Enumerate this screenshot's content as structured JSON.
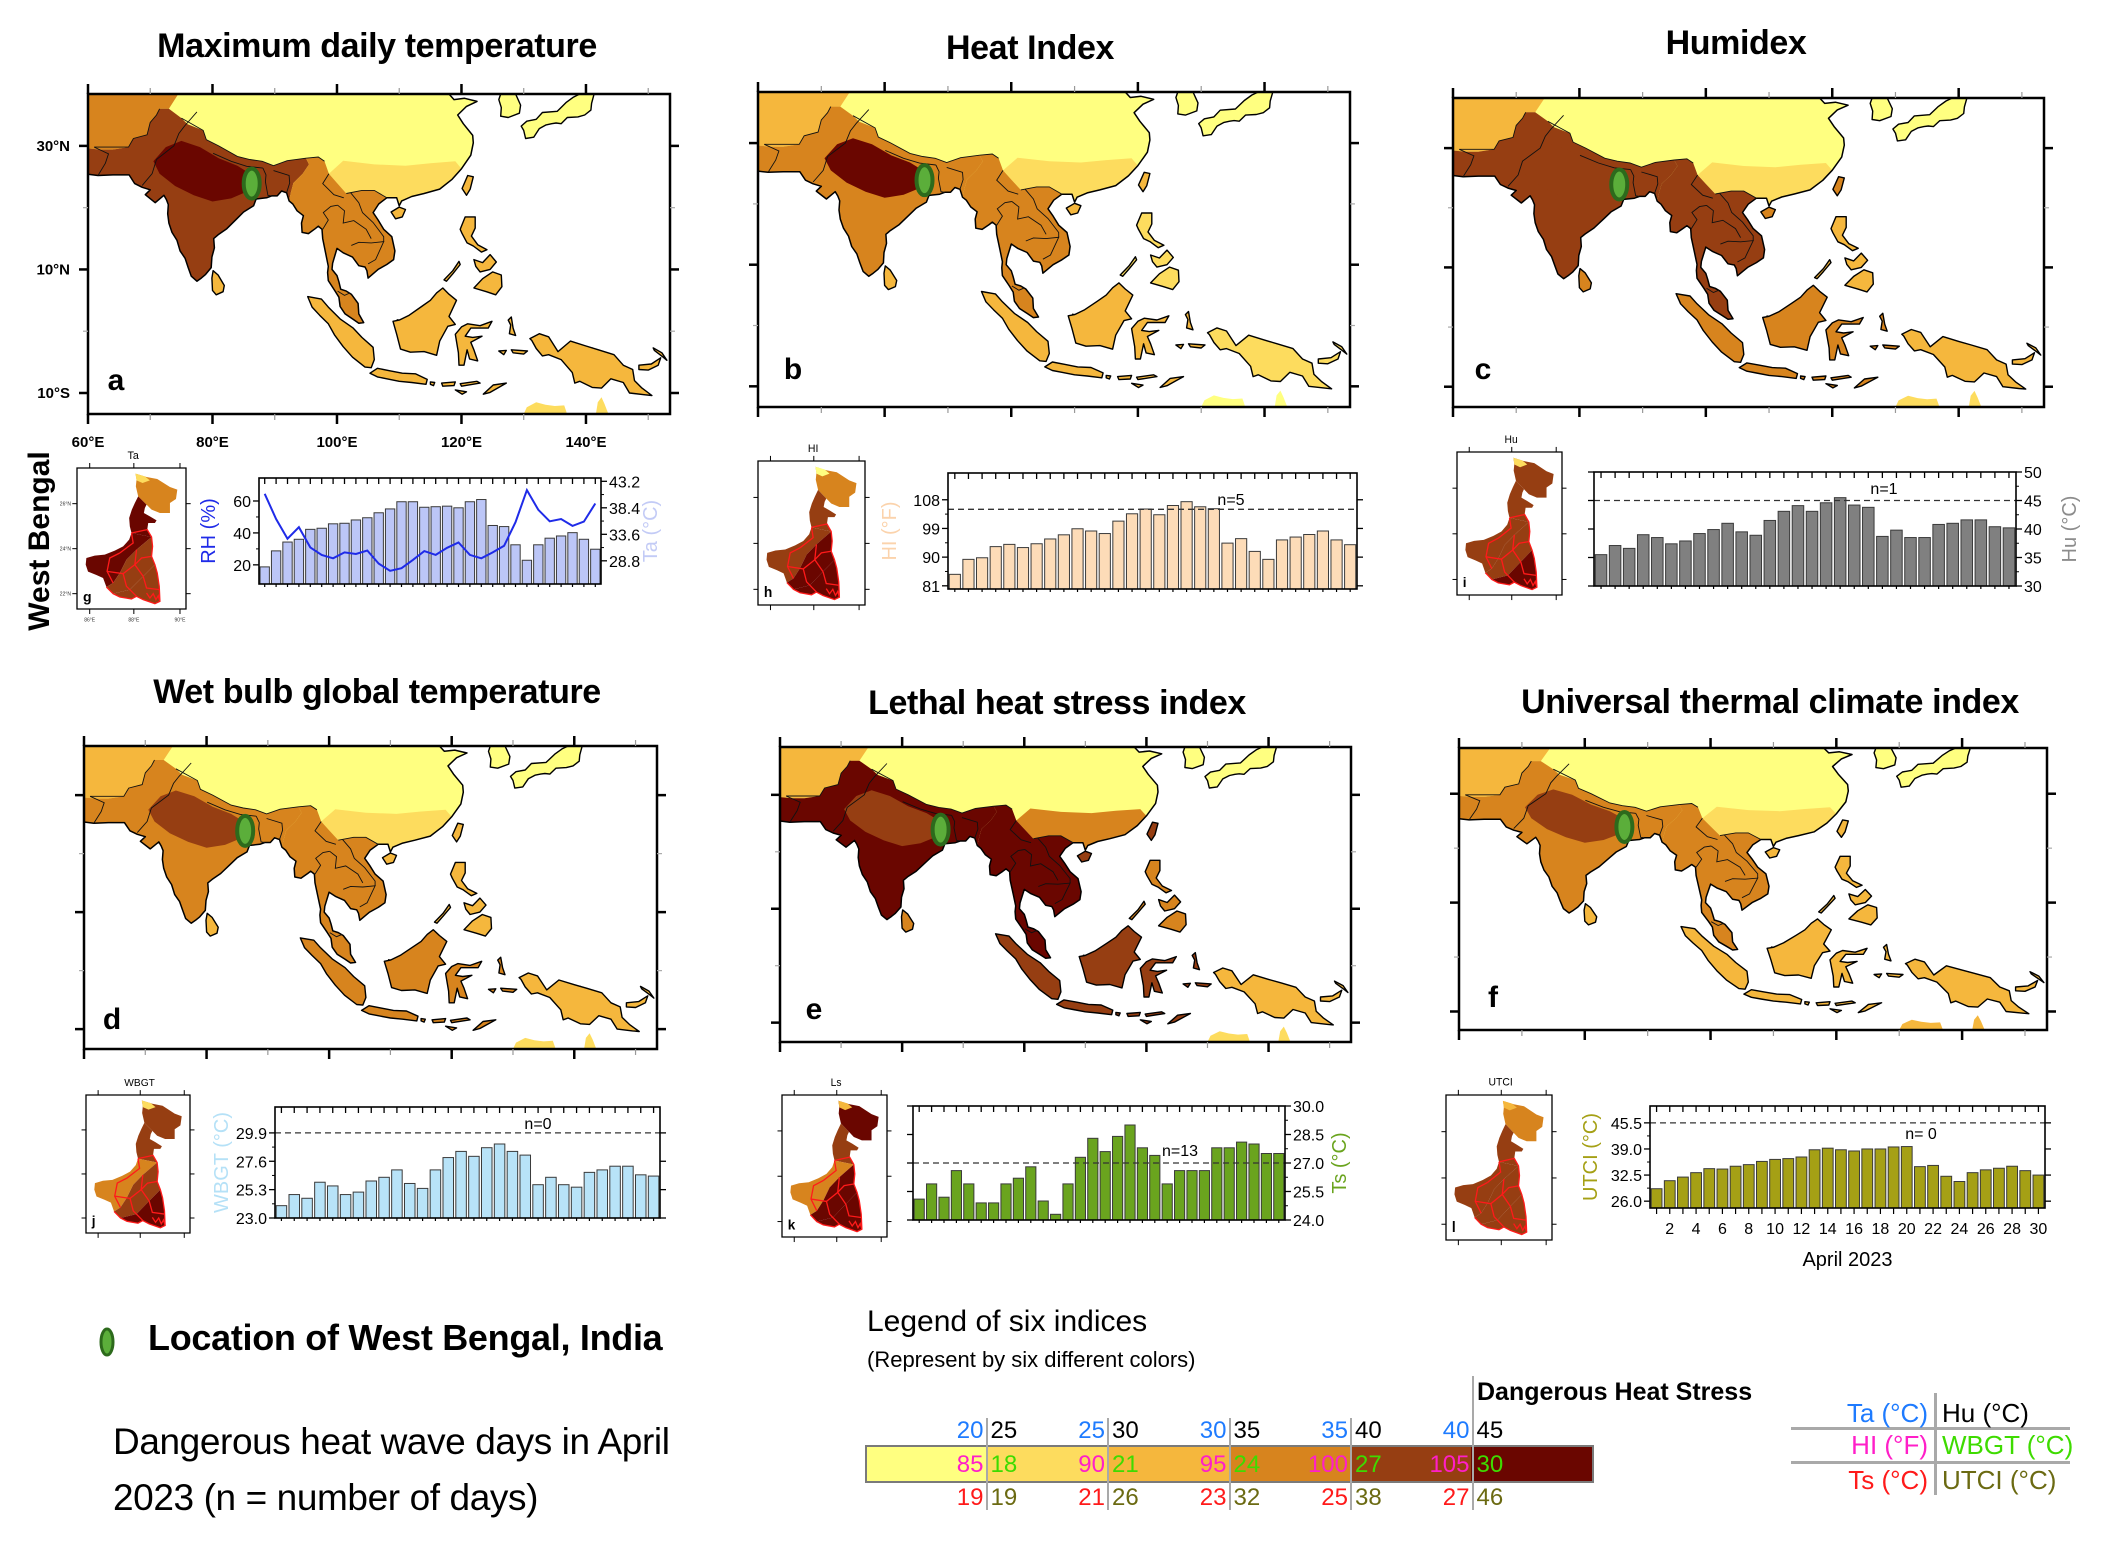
{
  "side_label": "West Bengal",
  "panels": [
    {
      "key": "ta",
      "letter": "a",
      "title": "Maximum daily temperature",
      "mini_title": "Ta",
      "mini_letter": "g",
      "map_levels": {
        "north": 1,
        "west": 4,
        "south_asia": 5,
        "india_core": 6,
        "south_china": 2,
        "indochina": 4,
        "maritime": 3,
        "new_guinea": 3,
        "japan_korea": 1,
        "philippines": 3,
        "taiwan_hainan": 3,
        "sri_lanka": 3,
        "australia": 2
      },
      "mini_levels": {
        "north_tip": 2,
        "north": 4,
        "neck": 6,
        "west": 6,
        "south": 5,
        "southeast": 5
      }
    },
    {
      "key": "hi",
      "letter": "b",
      "title": "Heat Index",
      "mini_title": "HI",
      "mini_letter": "h",
      "map_levels": {
        "north": 1,
        "west": 3,
        "south_asia": 4,
        "india_core": 6,
        "south_china": 2,
        "indochina": 4,
        "maritime": 3,
        "new_guinea": 2,
        "japan_korea": 1,
        "philippines": 2,
        "taiwan_hainan": 3,
        "sri_lanka": 3,
        "australia": 1
      },
      "mini_levels": {
        "north_tip": 1,
        "north": 4,
        "neck": 5,
        "west": 5,
        "south": 6,
        "southeast": 6
      }
    },
    {
      "key": "hu",
      "letter": "c",
      "title": "Humidex",
      "mini_title": "Hu",
      "mini_letter": "i",
      "map_levels": {
        "north": 1,
        "west": 3,
        "south_asia": 5,
        "india_core": 5,
        "south_china": 2,
        "indochina": 5,
        "maritime": 4,
        "new_guinea": 3,
        "japan_korea": 1,
        "philippines": 3,
        "taiwan_hainan": 4,
        "sri_lanka": 4,
        "australia": 2
      },
      "mini_levels": {
        "north_tip": 2,
        "north": 5,
        "neck": 5,
        "west": 5,
        "south": 5,
        "southeast": 6
      }
    },
    {
      "key": "wbgt",
      "letter": "d",
      "title": "Wet bulb global temperature",
      "mini_title": "WBGT",
      "mini_letter": "j",
      "map_levels": {
        "north": 1,
        "west": 3,
        "south_asia": 4,
        "india_core": 5,
        "south_china": 2,
        "indochina": 4,
        "maritime": 4,
        "new_guinea": 3,
        "japan_korea": 1,
        "philippines": 3,
        "taiwan_hainan": 3,
        "sri_lanka": 3,
        "australia": 2
      },
      "mini_levels": {
        "north_tip": 2,
        "north": 5,
        "neck": 5,
        "west": 4,
        "south": 5,
        "southeast": 6
      }
    },
    {
      "key": "ls",
      "letter": "e",
      "title": "Lethal heat stress index",
      "mini_title": "Ls",
      "mini_letter": "k",
      "map_levels": {
        "north": 1,
        "west": 3,
        "south_asia": 6,
        "india_core": 5,
        "south_china": 4,
        "indochina": 6,
        "maritime": 5,
        "new_guinea": 3,
        "japan_korea": 1,
        "philippines": 4,
        "taiwan_hainan": 5,
        "sri_lanka": 4,
        "australia": 2
      },
      "mini_levels": {
        "north_tip": 3,
        "north": 6,
        "neck": 5,
        "west": 4,
        "south": 6,
        "southeast": 6
      }
    },
    {
      "key": "utci",
      "letter": "f",
      "title": "Universal thermal climate index",
      "mini_title": "UTCI",
      "mini_letter": "l",
      "map_levels": {
        "north": 1,
        "west": 3,
        "south_asia": 4,
        "india_core": 5,
        "south_china": 2,
        "indochina": 4,
        "maritime": 3,
        "new_guinea": 3,
        "japan_korea": 1,
        "philippines": 3,
        "taiwan_hainan": 3,
        "sri_lanka": 3,
        "australia": 3
      },
      "mini_levels": {
        "north_tip": 3,
        "north": 4,
        "neck": 5,
        "west": 5,
        "south": 5,
        "southeast": 5
      }
    }
  ],
  "map_axes": {
    "lon_range": [
      60,
      153.5
    ],
    "lat_range": [
      -13.4,
      38.4
    ],
    "lon_ticks": [
      60,
      80,
      100,
      120,
      140
    ],
    "lon_labels": [
      "60°E",
      "80°E",
      "100°E",
      "120°E",
      "140°E"
    ],
    "lat_ticks": [
      30,
      10,
      -10
    ],
    "lat_labels": [
      "30°N",
      "10°N",
      "10°S"
    ]
  },
  "mini_map_axes": {
    "lat_labels": [
      "26°N",
      "24°N",
      "22°N"
    ],
    "lon_labels": [
      "86°E",
      "88°E",
      "90°E"
    ]
  },
  "location_marker": {
    "lon": 86.3,
    "lat": 23.9,
    "fill": "#5BAE3A",
    "stroke": "#2D6A1C"
  },
  "notes": {
    "location": "Location of West Bengal, India",
    "days_line1": "Dangerous heat wave days in April",
    "days_line2": "2023 (n = number of days)"
  },
  "legend": {
    "title": "Legend of six indices",
    "subtitle": "(Represent by six different colors)",
    "danger_label": "Dangerous Heat Stress",
    "colors": [
      "#FFFF80",
      "#FDDC5E",
      "#F5B73D",
      "#D7841E",
      "#963E12",
      "#6A0600"
    ],
    "index_colors": {
      "ta": "#1E7BFF",
      "hu": "#000000",
      "hi": "#FF1FC8",
      "wbgt": "#3EDB00",
      "ts": "#FF1A1A",
      "utci": "#6B6A12"
    },
    "thresholds": [
      {
        "ta": "20",
        "hu": "25",
        "hi": "85",
        "wbgt": "18",
        "ts": "19",
        "utci": "19"
      },
      {
        "ta": "25",
        "hu": "30",
        "hi": "90",
        "wbgt": "21",
        "ts": "21",
        "utci": "26"
      },
      {
        "ta": "30",
        "hu": "35",
        "hi": "95",
        "wbgt": "24",
        "ts": "23",
        "utci": "32"
      },
      {
        "ta": "35",
        "hu": "40",
        "hi": "100",
        "wbgt": "27",
        "ts": "25",
        "utci": "38"
      },
      {
        "ta": "40",
        "hu": "45",
        "hi": "105",
        "wbgt": "30",
        "ts": "27",
        "utci": "46"
      }
    ],
    "key": [
      {
        "left": "Ta (°C)",
        "left_color": "#1E7BFF",
        "right": "Hu (°C)",
        "right_color": "#000000"
      },
      {
        "left": "HI (°F)",
        "left_color": "#FF1FC8",
        "right": "WBGT (°C)",
        "right_color": "#3EDB00"
      },
      {
        "left": "Ts (°C)",
        "left_color": "#FF1A1A",
        "right": "UTCI (°C)",
        "right_color": "#6B6A12"
      }
    ]
  },
  "chart_data": [
    {
      "panel": "g",
      "type": "bar",
      "title": "",
      "x": [
        1,
        2,
        3,
        4,
        5,
        6,
        7,
        8,
        9,
        10,
        11,
        12,
        13,
        14,
        15,
        16,
        17,
        18,
        19,
        20,
        21,
        22,
        23,
        24,
        25,
        26,
        27,
        28,
        29,
        30
      ],
      "series": [
        {
          "name": "Ta",
          "kind": "bar",
          "axis": "right",
          "color": "#BCC6F7",
          "values": [
            27.7,
            30.6,
            32.2,
            32.7,
            34.5,
            34.7,
            35.5,
            35.6,
            36.2,
            36.6,
            37.5,
            38.2,
            39.5,
            39.5,
            38.5,
            38.6,
            38.7,
            38.4,
            39.5,
            39.9,
            35.2,
            35.0,
            31.7,
            28.9,
            31.7,
            32.9,
            33.3,
            33.9,
            32.7,
            30.9
          ]
        },
        {
          "name": "RH",
          "kind": "line",
          "axis": "left",
          "color": "#1F2BE8",
          "values": [
            64.5,
            48.7,
            36.4,
            43.6,
            30.9,
            26.2,
            24.1,
            27.8,
            26.8,
            29.0,
            20.8,
            16.3,
            17.9,
            23.1,
            28.6,
            26.2,
            30.7,
            34.0,
            26.2,
            24.1,
            27.8,
            31.9,
            46.7,
            66.8,
            54.5,
            47.3,
            48.7,
            44.4,
            47.1,
            58.4
          ]
        }
      ],
      "axes": [
        {
          "side": "left",
          "label": "RH (%)",
          "label_color": "#1F2BE8",
          "ylim": [
            8,
            74.4
          ],
          "yticks": [
            20,
            40,
            60
          ],
          "ytick_labels": [
            "20",
            "40",
            "60"
          ]
        },
        {
          "side": "right",
          "label": "Ta (°C)",
          "label_color": "#C3CBF6",
          "ylim": [
            24.6,
            43.8
          ],
          "yticks": [
            28.8,
            33.6,
            38.4,
            43.2
          ],
          "ytick_labels": [
            "28.8",
            "33.6",
            "38.4",
            "43.2"
          ]
        }
      ]
    },
    {
      "panel": "h",
      "type": "bar",
      "title": "",
      "x": [
        1,
        2,
        3,
        4,
        5,
        6,
        7,
        8,
        9,
        10,
        11,
        12,
        13,
        14,
        15,
        16,
        17,
        18,
        19,
        20,
        21,
        22,
        23,
        24,
        25,
        26,
        27,
        28,
        29,
        30
      ],
      "series": [
        {
          "name": "HI",
          "kind": "bar",
          "axis": "left",
          "color": "#FDDCB8",
          "values": [
            84.6,
            89.3,
            89.8,
            93.3,
            94.0,
            93.0,
            94.2,
            95.7,
            97.0,
            98.9,
            98.2,
            97.4,
            101.3,
            103.6,
            105.1,
            103.3,
            106.2,
            107.4,
            105.8,
            105.2,
            94.4,
            95.8,
            91.8,
            89.3,
            95.4,
            96.3,
            97.1,
            98.2,
            95.4,
            93.9
          ]
        }
      ],
      "axes": [
        {
          "side": "left",
          "label": "HI (°F)",
          "label_color": "#FBD3AC",
          "ylim": [
            80,
            116.4
          ],
          "yticks": [
            81,
            90,
            99,
            108
          ],
          "ytick_labels": [
            "81",
            "90",
            "99",
            "108"
          ]
        }
      ],
      "threshold": 105,
      "annotation": "n=5"
    },
    {
      "panel": "i",
      "type": "bar",
      "title": "",
      "x": [
        1,
        2,
        3,
        4,
        5,
        6,
        7,
        8,
        9,
        10,
        11,
        12,
        13,
        14,
        15,
        16,
        17,
        18,
        19,
        20,
        21,
        22,
        23,
        24,
        25,
        26,
        27,
        28,
        29,
        30
      ],
      "series": [
        {
          "name": "Hu",
          "kind": "bar",
          "axis": "right",
          "color": "#808080",
          "values": [
            35.5,
            37.1,
            36.6,
            39.0,
            38.5,
            37.4,
            37.9,
            39.2,
            39.9,
            41.0,
            39.5,
            38.9,
            41.5,
            43.1,
            44.1,
            43.1,
            44.6,
            45.5,
            44.2,
            43.8,
            38.7,
            39.8,
            38.5,
            38.5,
            40.8,
            41.0,
            41.6,
            41.6,
            40.4,
            40.2
          ]
        }
      ],
      "axes": [
        {
          "side": "right",
          "label": "Hu (°C)",
          "label_color": "#8C8C8C",
          "ylim": [
            30,
            50
          ],
          "yticks": [
            30,
            35,
            40,
            45,
            50
          ],
          "ytick_labels": [
            "30",
            "35",
            "40",
            "45",
            "50"
          ]
        }
      ],
      "threshold": 45,
      "annotation": "n=1"
    },
    {
      "panel": "j",
      "type": "bar",
      "title": "",
      "x": [
        1,
        2,
        3,
        4,
        5,
        6,
        7,
        8,
        9,
        10,
        11,
        12,
        13,
        14,
        15,
        16,
        17,
        18,
        19,
        20,
        21,
        22,
        23,
        24,
        25,
        26,
        27,
        28,
        29,
        30
      ],
      "series": [
        {
          "name": "WBGT",
          "kind": "bar",
          "axis": "left",
          "color": "#B8E3F8",
          "values": [
            24.0,
            24.9,
            24.6,
            25.9,
            25.6,
            24.9,
            25.1,
            26.0,
            26.3,
            26.9,
            25.8,
            25.4,
            26.9,
            27.9,
            28.4,
            28.0,
            28.7,
            29.0,
            28.4,
            28.1,
            25.7,
            26.3,
            25.7,
            25.5,
            26.7,
            26.9,
            27.2,
            27.2,
            26.5,
            26.4
          ]
        }
      ],
      "axes": [
        {
          "side": "left",
          "label": "WBGT (°C)",
          "label_color": "#B5E1F7",
          "ylim": [
            23,
            32
          ],
          "yticks": [
            23.0,
            25.3,
            27.6,
            29.9
          ],
          "ytick_labels": [
            "23.0",
            "25.3",
            "27.6",
            "29.9"
          ]
        }
      ],
      "threshold": 29.9,
      "annotation": "n=0"
    },
    {
      "panel": "k",
      "type": "bar",
      "title": "",
      "x": [
        1,
        2,
        3,
        4,
        5,
        6,
        7,
        8,
        9,
        10,
        11,
        12,
        13,
        14,
        15,
        16,
        17,
        18,
        19,
        20,
        21,
        22,
        23,
        24,
        25,
        26,
        27,
        28,
        29,
        30
      ],
      "series": [
        {
          "name": "Ts",
          "kind": "bar",
          "axis": "right",
          "color": "#6AA41E",
          "values": [
            25.1,
            25.9,
            25.2,
            26.6,
            25.9,
            24.9,
            24.9,
            25.9,
            26.2,
            26.8,
            25.0,
            24.3,
            25.9,
            27.3,
            28.3,
            27.6,
            28.4,
            29.0,
            27.8,
            27.4,
            25.9,
            26.6,
            26.6,
            26.6,
            27.8,
            27.8,
            28.1,
            28.0,
            27.5,
            27.5
          ]
        }
      ],
      "axes": [
        {
          "side": "right",
          "label": "Ts (°C)",
          "label_color": "#6AA41E",
          "ylim": [
            24,
            30
          ],
          "yticks": [
            24.0,
            25.5,
            27.0,
            28.5,
            30.0
          ],
          "ytick_labels": [
            "24.0",
            "25.5",
            "27.0",
            "28.5",
            "30.0"
          ]
        }
      ],
      "threshold": 27.0,
      "annotation": "n=13"
    },
    {
      "panel": "l",
      "type": "bar",
      "title": "",
      "x": [
        1,
        2,
        3,
        4,
        5,
        6,
        7,
        8,
        9,
        10,
        11,
        12,
        13,
        14,
        15,
        16,
        17,
        18,
        19,
        20,
        21,
        22,
        23,
        24,
        25,
        26,
        27,
        28,
        29,
        30
      ],
      "series": [
        {
          "name": "UTCI",
          "kind": "bar",
          "axis": "left",
          "color": "#A5A015",
          "values": [
            29.1,
            31.1,
            32.0,
            33.1,
            34.1,
            34.0,
            34.7,
            35.1,
            35.9,
            36.4,
            36.6,
            37.0,
            38.8,
            39.2,
            38.8,
            38.5,
            39.0,
            39.0,
            39.5,
            39.6,
            34.6,
            34.9,
            32.2,
            30.9,
            33.1,
            33.8,
            34.2,
            34.7,
            33.6,
            32.5
          ]
        }
      ],
      "axes": [
        {
          "side": "left",
          "label": "UTCI (°C)",
          "label_color": "#A5A015",
          "ylim": [
            24.3,
            49.7
          ],
          "yticks": [
            26.0,
            32.5,
            39.0,
            45.5
          ],
          "ytick_labels": [
            "26.0",
            "32.5",
            "39.0",
            "45.5"
          ]
        }
      ],
      "threshold": 45.5,
      "annotation": "n= 0",
      "xticks": [
        2,
        4,
        6,
        8,
        10,
        12,
        14,
        16,
        18,
        20,
        22,
        24,
        26,
        28,
        30
      ],
      "xtick_labels": [
        "2",
        "4",
        "6",
        "8",
        "10",
        "12",
        "14",
        "16",
        "18",
        "20",
        "22",
        "24",
        "26",
        "28",
        "30"
      ],
      "xlabel": "April 2023"
    }
  ]
}
